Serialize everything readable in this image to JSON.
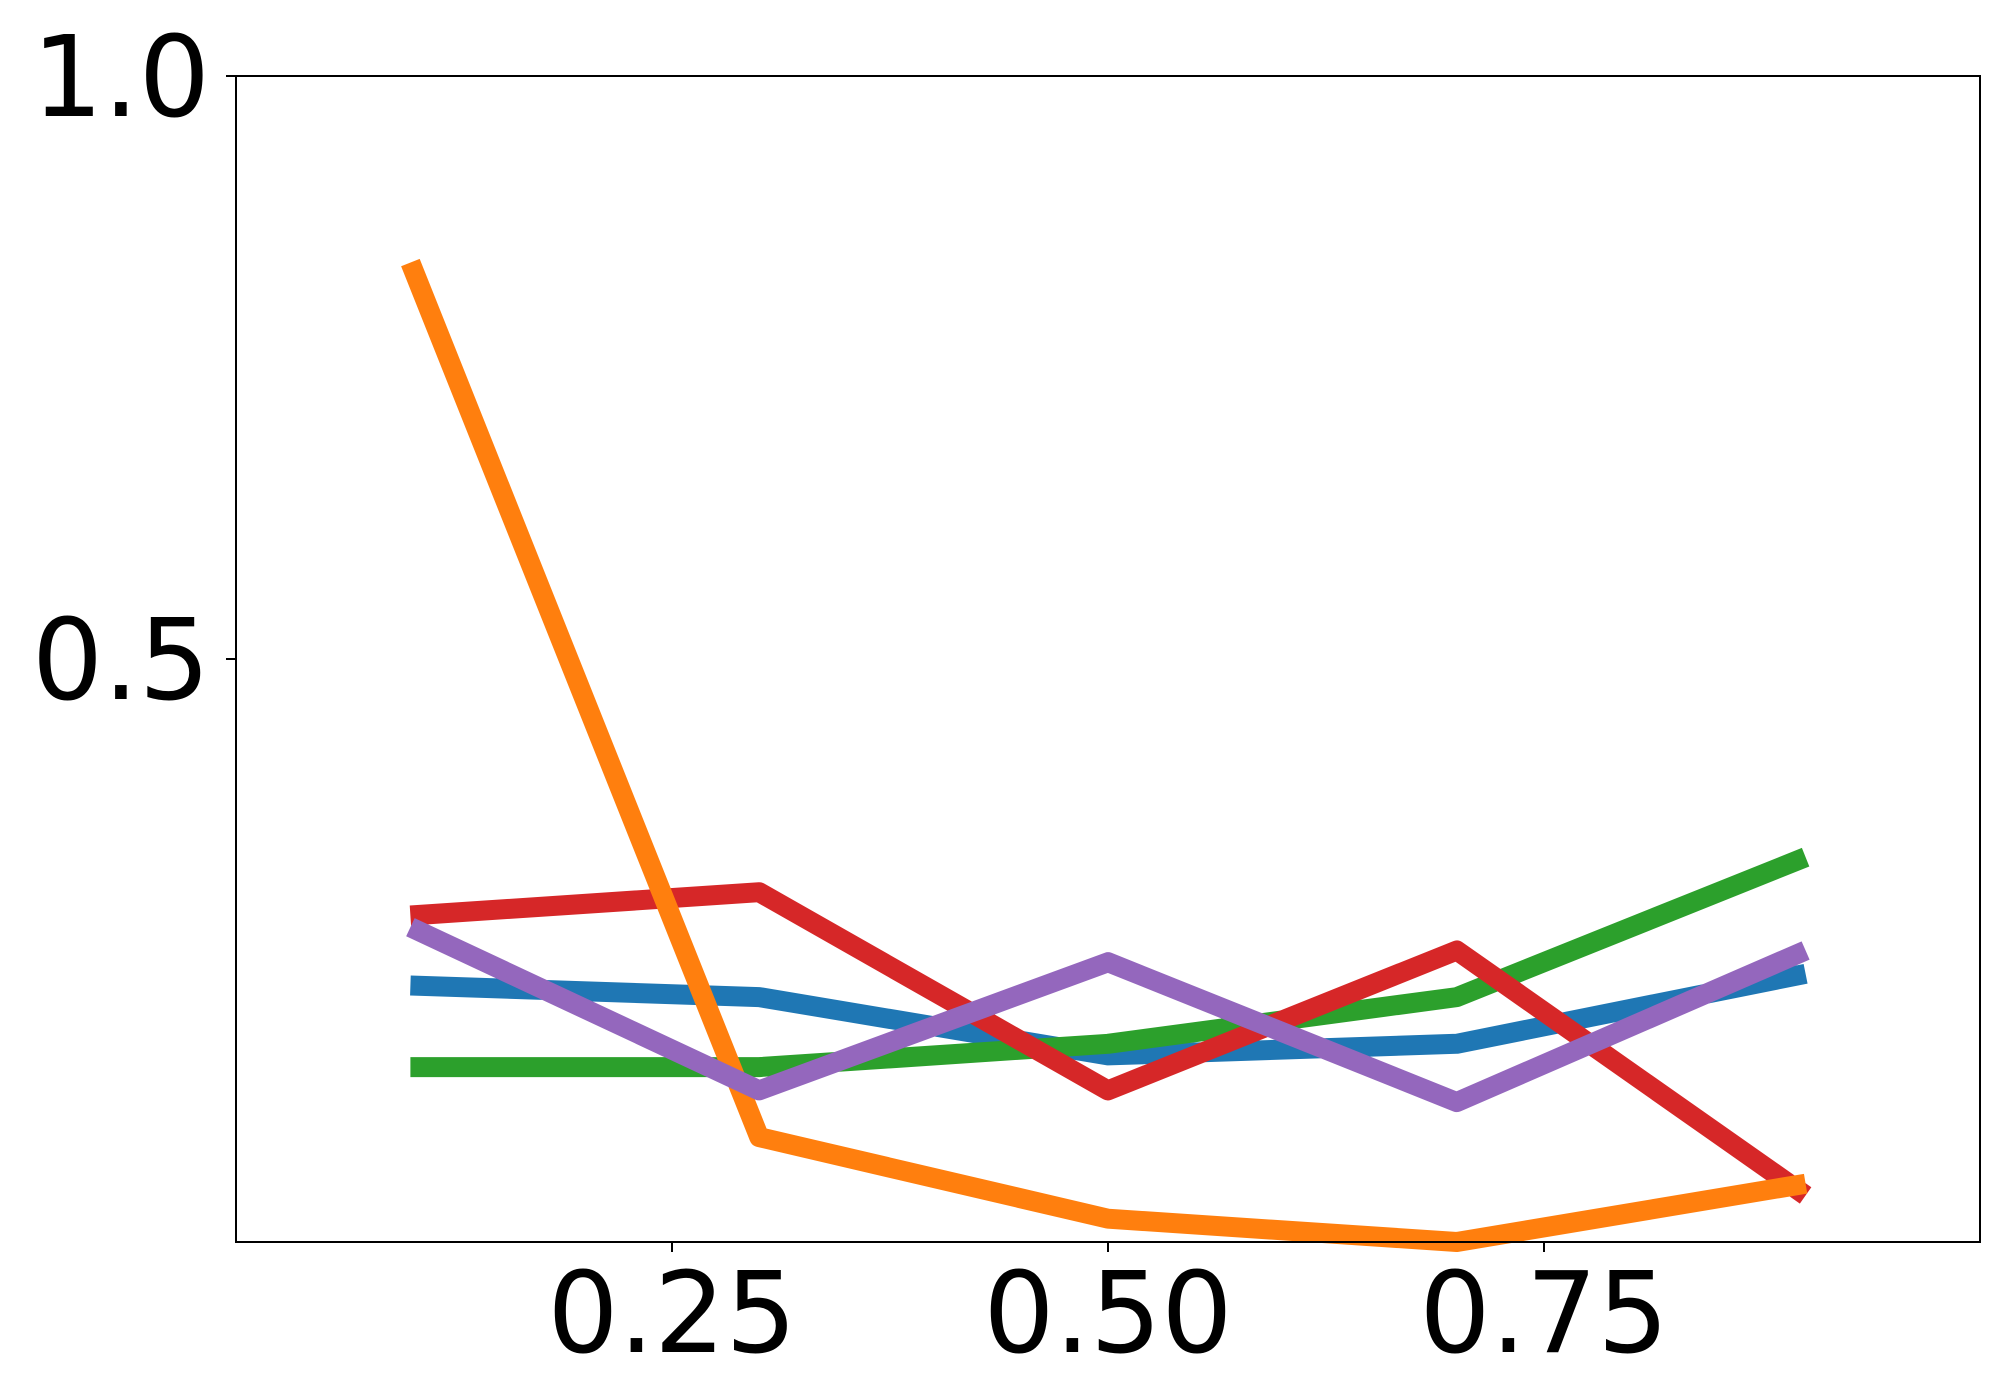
{
  "chart_data": {
    "type": "line",
    "title": "",
    "xlabel": "",
    "ylabel": "",
    "xlim": [
      0.0,
      1.0
    ],
    "ylim": [
      0.0,
      1.0
    ],
    "grid": false,
    "x_ticks": [
      {
        "value": 0.25,
        "label": "0.25"
      },
      {
        "value": 0.5,
        "label": "0.50"
      },
      {
        "value": 0.75,
        "label": "0.75"
      }
    ],
    "y_ticks": [
      {
        "value": 0.5,
        "label": "0.5"
      },
      {
        "value": 1.0,
        "label": "1.0"
      }
    ],
    "x": [
      0.1,
      0.3,
      0.5,
      0.7,
      0.9
    ],
    "series": [
      {
        "color": "#1f77b4",
        "values": [
          0.22,
          0.21,
          0.16,
          0.17,
          0.23
        ]
      },
      {
        "color": "#2ca02c",
        "values": [
          0.15,
          0.15,
          0.17,
          0.21,
          0.33
        ]
      },
      {
        "color": "#d62728",
        "values": [
          0.28,
          0.3,
          0.13,
          0.25,
          0.04
        ]
      },
      {
        "color": "#ff7f0e",
        "values": [
          0.84,
          0.09,
          0.02,
          0.0,
          0.05
        ]
      },
      {
        "color": "#9467bd",
        "values": [
          0.27,
          0.13,
          0.24,
          0.12,
          0.25
        ]
      }
    ]
  }
}
